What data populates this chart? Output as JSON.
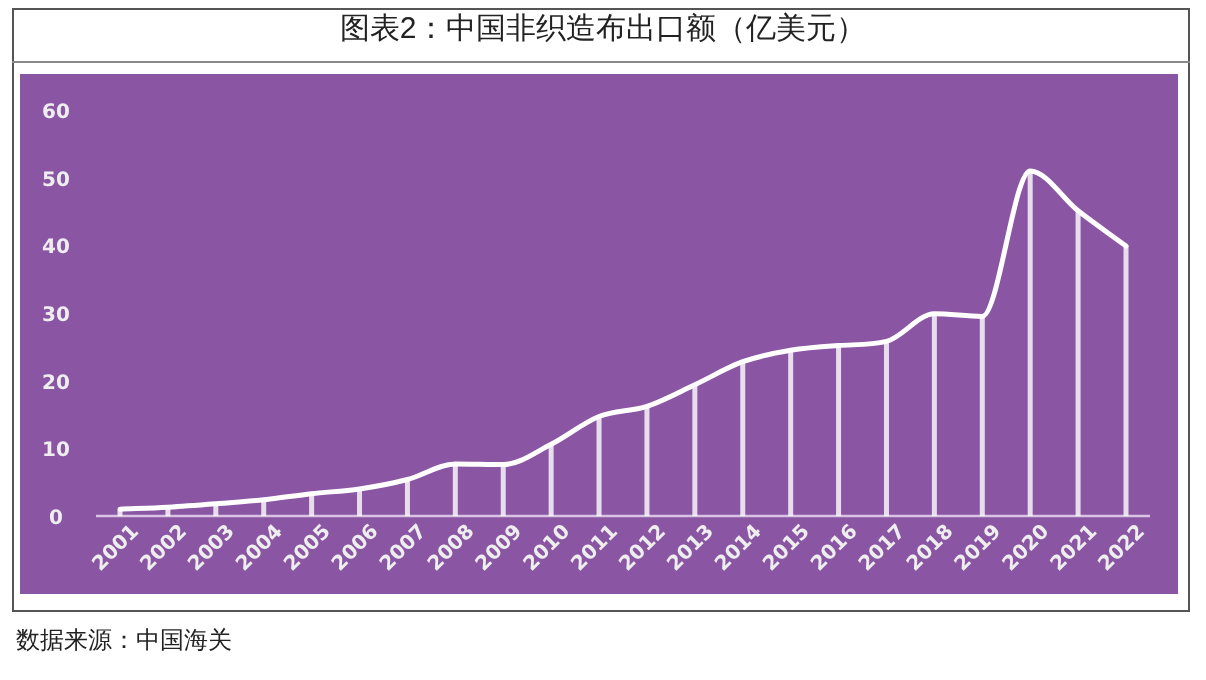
{
  "chart_data": {
    "type": "line",
    "title": "图表2：中国非织造布出口额（亿美元）",
    "categories": [
      "2001",
      "2002",
      "2003",
      "2004",
      "2005",
      "2006",
      "2007",
      "2008",
      "2009",
      "2010",
      "2011",
      "2012",
      "2013",
      "2014",
      "2015",
      "2016",
      "2017",
      "2018",
      "2019",
      "2020",
      "2021",
      "2022"
    ],
    "series": [
      {
        "type": "bar",
        "color": "#ffffff",
        "values": [
          1.0,
          1.3,
          1.8,
          2.4,
          3.3,
          4.0,
          5.4,
          7.7,
          7.6,
          10.6,
          14.7,
          16.2,
          19.4,
          22.8,
          24.5,
          25.2,
          25.8,
          29.9,
          29.5,
          51.0,
          45.1,
          39.9
        ]
      },
      {
        "color": "#ffffff",
        "values": [
          1.0,
          1.3,
          1.8,
          2.4,
          3.3,
          4.0,
          5.4,
          7.7,
          7.6,
          10.6,
          14.7,
          16.2,
          19.4,
          22.8,
          24.5,
          25.2,
          25.8,
          29.9,
          29.5,
          51.0,
          45.1,
          39.9
        ]
      }
    ],
    "ylim": [
      0,
      60
    ],
    "yticks": [
      0,
      10,
      20,
      30,
      40,
      50,
      60
    ],
    "annotations": [
      "数据来源：中国海关"
    ]
  }
}
